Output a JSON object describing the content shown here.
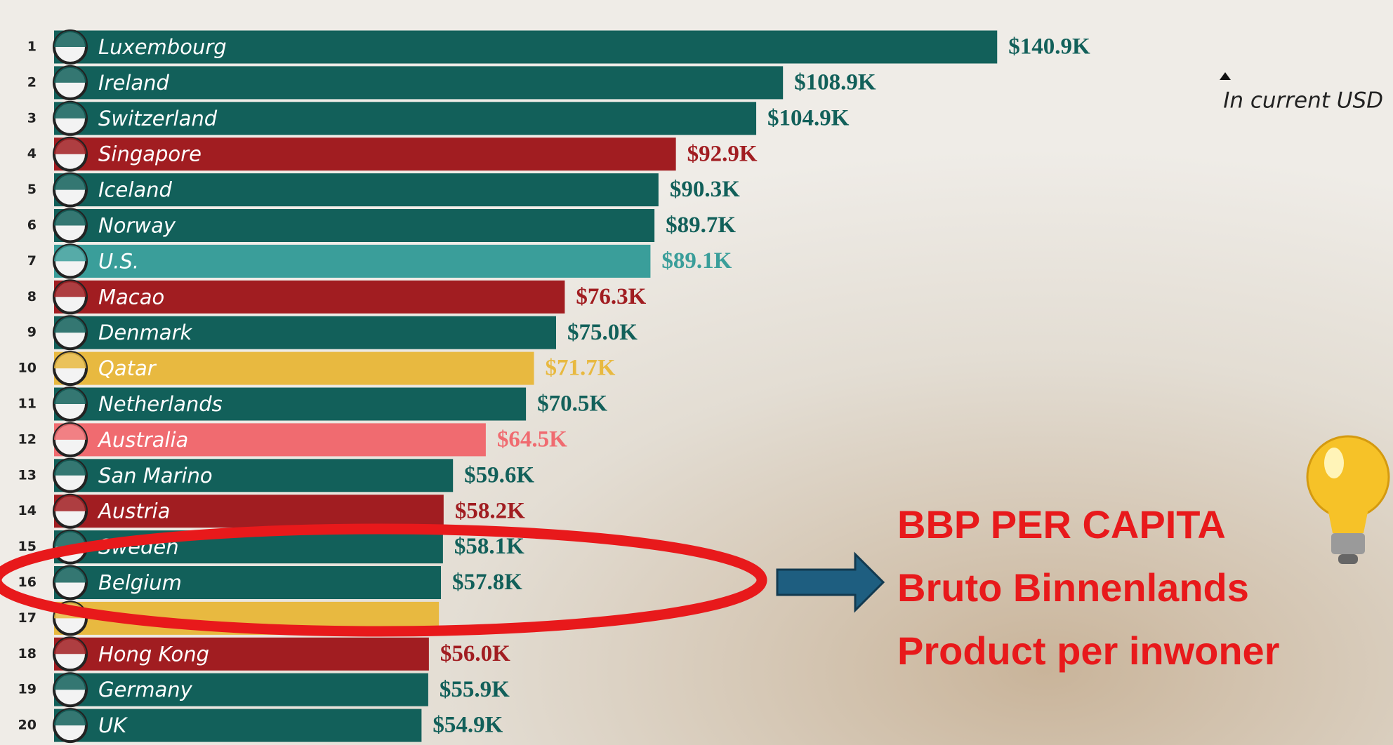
{
  "chart_data": {
    "type": "bar",
    "orientation": "horizontal",
    "ranks": [
      1,
      2,
      3,
      4,
      5,
      6,
      7,
      8,
      9,
      10,
      11,
      12,
      13,
      14,
      15,
      16,
      17,
      18,
      19,
      20
    ],
    "categories": [
      "Luxembourg",
      "Ireland",
      "Switzerland",
      "Singapore",
      "Iceland",
      "Norway",
      "U.S.",
      "Macao",
      "Denmark",
      "Qatar",
      "Netherlands",
      "Australia",
      "San Marino",
      "Austria",
      "Sweden",
      "Belgium",
      null,
      "Hong Kong",
      "Germany",
      "UK"
    ],
    "values": [
      140.9,
      108.9,
      104.9,
      92.9,
      90.3,
      89.7,
      89.1,
      76.3,
      75.0,
      71.7,
      70.5,
      64.5,
      59.6,
      58.2,
      58.1,
      57.8,
      57.5,
      56.0,
      55.9,
      54.9
    ],
    "value_labels": [
      "$140.9K",
      "$108.9K",
      "$104.9K",
      "$92.9K",
      "$90.3K",
      "$89.7K",
      "$89.1K",
      "$76.3K",
      "$75.0K",
      "$71.7K",
      "$70.5K",
      "$64.5K",
      "$59.6K",
      "$58.2K",
      "$58.1K",
      "$57.8K",
      null,
      "$56.0K",
      "$55.9K",
      "$54.9K"
    ],
    "colors": [
      "#12605a",
      "#12605a",
      "#12605a",
      "#a11d21",
      "#12605a",
      "#12605a",
      "#3a9e9a",
      "#a11d21",
      "#12605a",
      "#e8b940",
      "#12605a",
      "#f06b70",
      "#12605a",
      "#a11d21",
      "#12605a",
      "#12605a",
      "#e8b940",
      "#a11d21",
      "#12605a",
      "#12605a"
    ],
    "xlim": [
      0,
      150
    ],
    "note": "In current USD",
    "annotations": [
      "BBP PER CAPITA",
      "Bruto Binnenlands",
      "Product per inwoner"
    ]
  }
}
